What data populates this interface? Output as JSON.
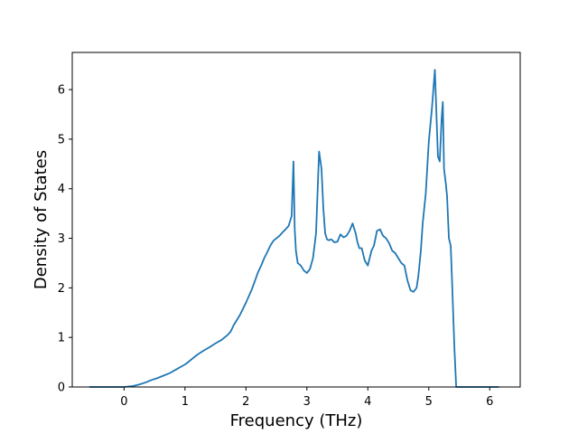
{
  "chart_data": {
    "type": "line",
    "title": "",
    "xlabel": "Frequency (THz)",
    "ylabel": "Density of States",
    "xlim": [
      -0.85,
      6.5
    ],
    "ylim": [
      0,
      6.75
    ],
    "xticks": [
      0,
      1,
      2,
      3,
      4,
      5,
      6
    ],
    "yticks": [
      0,
      1,
      2,
      3,
      4,
      5,
      6
    ],
    "grid": false,
    "line_color": "#1f77b4",
    "series": [
      {
        "x": [
          -0.57,
          -0.2,
          0.0,
          0.15,
          0.25,
          0.35,
          0.45,
          0.55,
          0.65,
          0.75,
          0.85,
          0.95,
          1.02,
          1.1,
          1.2,
          1.3,
          1.4,
          1.5,
          1.6,
          1.7,
          1.75,
          1.8,
          1.9,
          2.0,
          2.1,
          2.15,
          2.2,
          2.25,
          2.3,
          2.35,
          2.4,
          2.45,
          2.5,
          2.55,
          2.6,
          2.65,
          2.7,
          2.75,
          2.78,
          2.8,
          2.82,
          2.85,
          2.9,
          2.95,
          3.0,
          3.05,
          3.1,
          3.15,
          3.2,
          3.24,
          3.27,
          3.3,
          3.33,
          3.36,
          3.4,
          3.45,
          3.5,
          3.55,
          3.6,
          3.65,
          3.7,
          3.75,
          3.8,
          3.83,
          3.86,
          3.9,
          3.95,
          4.0,
          4.03,
          4.06,
          4.1,
          4.15,
          4.2,
          4.25,
          4.3,
          4.35,
          4.4,
          4.45,
          4.5,
          4.55,
          4.6,
          4.65,
          4.7,
          4.75,
          4.8,
          4.83,
          4.87,
          4.9,
          4.95,
          5.0,
          5.05,
          5.1,
          5.15,
          5.18,
          5.21,
          5.23,
          5.25,
          5.28,
          5.3,
          5.33,
          5.36,
          5.38,
          5.42,
          5.45,
          5.48,
          5.52,
          5.55,
          5.58,
          5.62,
          5.7,
          6.1,
          6.15
        ],
        "y": [
          0,
          0,
          0,
          0.02,
          0.05,
          0.09,
          0.14,
          0.18,
          0.23,
          0.28,
          0.35,
          0.42,
          0.47,
          0.55,
          0.65,
          0.73,
          0.8,
          0.88,
          0.95,
          1.05,
          1.12,
          1.25,
          1.45,
          1.7,
          1.98,
          2.15,
          2.32,
          2.45,
          2.6,
          2.72,
          2.85,
          2.95,
          3.0,
          3.05,
          3.12,
          3.18,
          3.25,
          3.45,
          4.55,
          3.2,
          2.75,
          2.5,
          2.45,
          2.35,
          2.3,
          2.38,
          2.6,
          3.1,
          4.75,
          4.4,
          3.6,
          3.1,
          2.98,
          2.96,
          2.98,
          2.92,
          2.93,
          3.08,
          3.02,
          3.05,
          3.15,
          3.3,
          3.1,
          2.92,
          2.8,
          2.8,
          2.55,
          2.45,
          2.6,
          2.75,
          2.85,
          3.15,
          3.18,
          3.05,
          3.0,
          2.9,
          2.75,
          2.7,
          2.6,
          2.5,
          2.45,
          2.15,
          1.95,
          1.92,
          2.0,
          2.25,
          2.75,
          3.3,
          3.9,
          4.95,
          5.6,
          6.4,
          4.65,
          4.55,
          5.4,
          5.75,
          4.4,
          4.1,
          3.85,
          3.0,
          2.85,
          2.2,
          0.8,
          0,
          0,
          0,
          0,
          0,
          0,
          0,
          0,
          0
        ]
      }
    ]
  }
}
